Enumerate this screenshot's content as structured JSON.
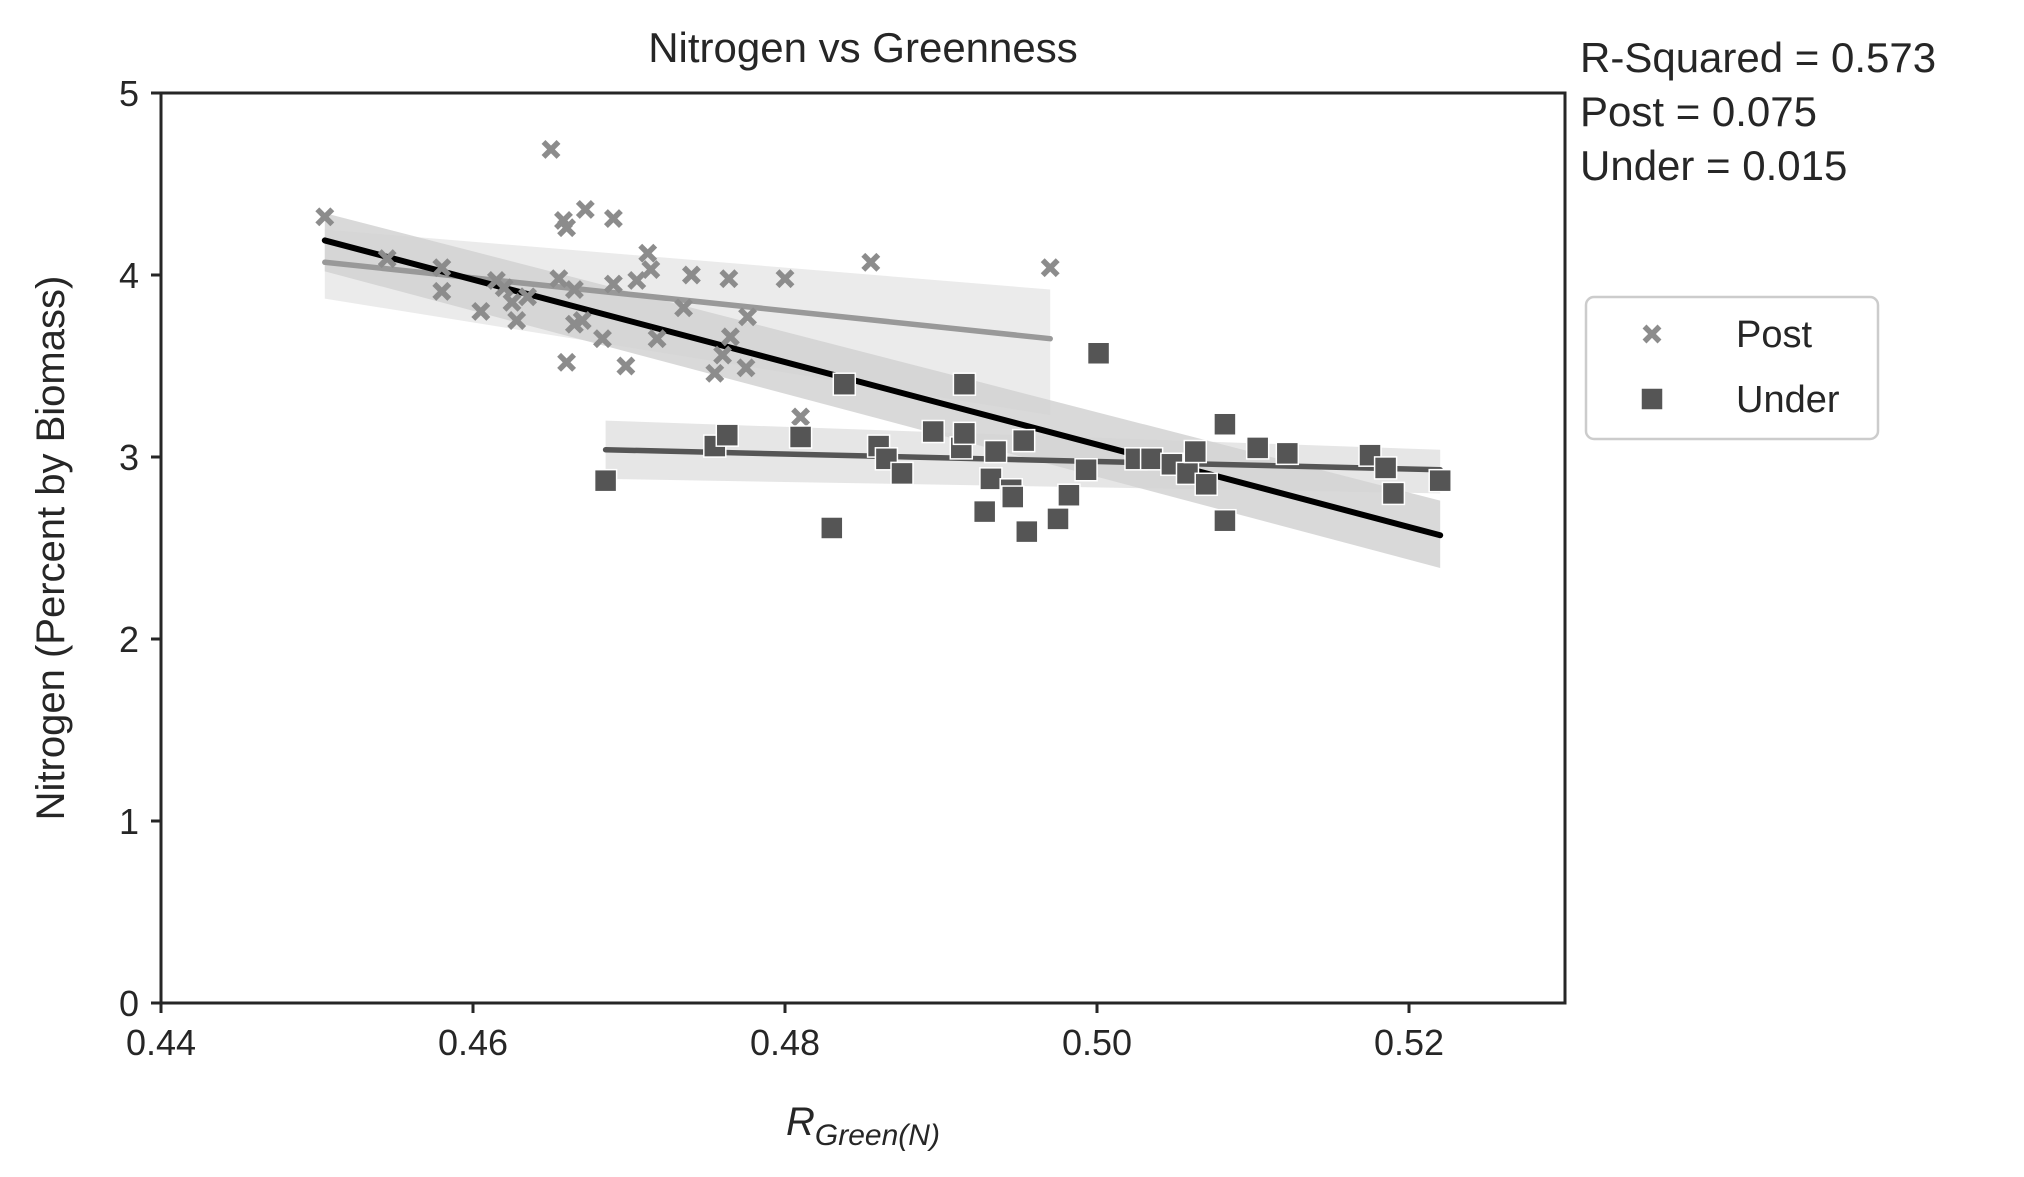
{
  "chart_data": {
    "type": "scatter",
    "title": "Nitrogen vs Greenness",
    "xlabel": {
      "main": "R",
      "subscript": "Green(N)"
    },
    "ylabel": "Nitrogen (Percent by Biomass)",
    "xlim": [
      0.44,
      0.53
    ],
    "ylim": [
      0,
      5
    ],
    "xticks": [
      "0.44",
      "0.46",
      "0.48",
      "0.50",
      "0.52"
    ],
    "xtick_values": [
      0.44,
      0.46,
      0.48,
      0.5,
      0.52
    ],
    "yticks": [
      "0",
      "1",
      "2",
      "3",
      "4",
      "5"
    ],
    "ytick_values": [
      0,
      1,
      2,
      3,
      4,
      5
    ],
    "grid": false,
    "legend_position": "right, outside plot",
    "stats": [
      "R-Squared = 0.573",
      "Post = 0.075",
      "Under = 0.015"
    ],
    "series": [
      {
        "name": "Post",
        "marker": "x",
        "color": "#8c8c8c",
        "points": [
          [
            0.4505,
            4.32
          ],
          [
            0.4545,
            4.09
          ],
          [
            0.458,
            4.04
          ],
          [
            0.458,
            3.91
          ],
          [
            0.4605,
            3.8
          ],
          [
            0.4615,
            3.97
          ],
          [
            0.462,
            3.93
          ],
          [
            0.4625,
            3.85
          ],
          [
            0.4628,
            3.75
          ],
          [
            0.4635,
            3.88
          ],
          [
            0.465,
            4.69
          ],
          [
            0.4655,
            3.98
          ],
          [
            0.4658,
            4.3
          ],
          [
            0.466,
            4.26
          ],
          [
            0.466,
            3.52
          ],
          [
            0.4665,
            3.92
          ],
          [
            0.4665,
            3.73
          ],
          [
            0.467,
            3.75
          ],
          [
            0.4672,
            4.36
          ],
          [
            0.4683,
            3.65
          ],
          [
            0.469,
            4.31
          ],
          [
            0.469,
            3.95
          ],
          [
            0.4698,
            3.5
          ],
          [
            0.4705,
            3.97
          ],
          [
            0.4712,
            4.12
          ],
          [
            0.4714,
            4.03
          ],
          [
            0.4718,
            3.65
          ],
          [
            0.4735,
            3.82
          ],
          [
            0.474,
            4.0
          ],
          [
            0.4755,
            3.46
          ],
          [
            0.476,
            3.56
          ],
          [
            0.4764,
            3.98
          ],
          [
            0.4765,
            3.66
          ],
          [
            0.4775,
            3.49
          ],
          [
            0.4776,
            3.77
          ],
          [
            0.48,
            3.98
          ],
          [
            0.481,
            3.22
          ],
          [
            0.4855,
            4.07
          ],
          [
            0.497,
            4.04
          ]
        ]
      },
      {
        "name": "Under",
        "marker": "square",
        "color": "#555555",
        "points": [
          [
            0.4685,
            2.87
          ],
          [
            0.4755,
            3.06
          ],
          [
            0.4763,
            3.12
          ],
          [
            0.481,
            3.11
          ],
          [
            0.483,
            2.61
          ],
          [
            0.4838,
            3.4
          ],
          [
            0.486,
            3.06
          ],
          [
            0.4865,
            2.99
          ],
          [
            0.4875,
            2.91
          ],
          [
            0.4895,
            3.14
          ],
          [
            0.4913,
            3.05
          ],
          [
            0.4915,
            3.4
          ],
          [
            0.4915,
            3.13
          ],
          [
            0.4928,
            2.7
          ],
          [
            0.4932,
            2.88
          ],
          [
            0.4935,
            3.03
          ],
          [
            0.4945,
            2.82
          ],
          [
            0.4946,
            2.78
          ],
          [
            0.4953,
            3.09
          ],
          [
            0.4955,
            2.59
          ],
          [
            0.4975,
            2.66
          ],
          [
            0.4982,
            2.79
          ],
          [
            0.4993,
            2.93
          ],
          [
            0.5001,
            3.57
          ],
          [
            0.5025,
            2.99
          ],
          [
            0.5035,
            2.99
          ],
          [
            0.5048,
            2.96
          ],
          [
            0.5058,
            2.91
          ],
          [
            0.5063,
            3.03
          ],
          [
            0.507,
            2.85
          ],
          [
            0.5082,
            3.18
          ],
          [
            0.5082,
            2.65
          ],
          [
            0.5103,
            3.05
          ],
          [
            0.5122,
            3.02
          ],
          [
            0.5175,
            3.01
          ],
          [
            0.5185,
            2.94
          ],
          [
            0.519,
            2.8
          ],
          [
            0.522,
            2.87
          ]
        ]
      }
    ],
    "fit_lines": [
      {
        "group": "Post",
        "color": "#999999",
        "x": [
          0.4505,
          0.497
        ],
        "y": [
          4.07,
          3.65
        ],
        "ci_upper": [
          4.25,
          3.92
        ],
        "ci_lower": [
          3.87,
          3.23
        ]
      },
      {
        "group": "Under",
        "color": "#555555",
        "x": [
          0.4685,
          0.522
        ],
        "y": [
          3.04,
          2.93
        ],
        "ci_upper": [
          3.2,
          3.04
        ],
        "ci_lower": [
          2.88,
          2.8
        ]
      },
      {
        "group": "All",
        "color": "#000000",
        "x": [
          0.4505,
          0.522
        ],
        "y": [
          4.19,
          2.57
        ],
        "ci_upper": [
          4.34,
          2.76
        ],
        "ci_lower": [
          4.02,
          2.39
        ]
      }
    ]
  }
}
